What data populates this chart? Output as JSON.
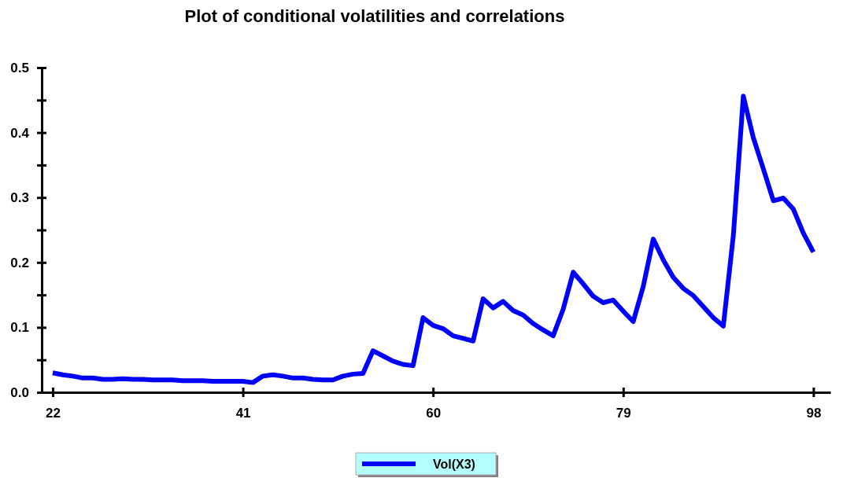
{
  "chart_data": {
    "type": "line",
    "title": "Plot of conditional volatilities and correlations",
    "x": [
      22,
      23,
      24,
      25,
      26,
      27,
      28,
      29,
      30,
      31,
      32,
      33,
      34,
      35,
      36,
      37,
      38,
      39,
      40,
      41,
      42,
      43,
      44,
      45,
      46,
      47,
      48,
      49,
      50,
      51,
      52,
      53,
      54,
      55,
      56,
      57,
      58,
      59,
      60,
      61,
      62,
      63,
      64,
      65,
      66,
      67,
      68,
      69,
      70,
      71,
      72,
      73,
      74,
      75,
      76,
      77,
      78,
      79,
      80,
      81,
      82,
      83,
      84,
      85,
      86,
      87,
      88,
      89,
      90,
      91,
      92,
      93,
      94,
      95,
      96,
      97,
      98
    ],
    "series": [
      {
        "name": "Vol(X3)",
        "color": "#0000ff",
        "values": [
          0.03,
          0.027,
          0.025,
          0.022,
          0.022,
          0.02,
          0.02,
          0.021,
          0.02,
          0.02,
          0.019,
          0.019,
          0.019,
          0.018,
          0.018,
          0.018,
          0.017,
          0.017,
          0.017,
          0.017,
          0.015,
          0.025,
          0.027,
          0.025,
          0.022,
          0.022,
          0.02,
          0.019,
          0.019,
          0.025,
          0.028,
          0.029,
          0.064,
          0.056,
          0.048,
          0.043,
          0.041,
          0.115,
          0.103,
          0.098,
          0.087,
          0.083,
          0.079,
          0.144,
          0.13,
          0.14,
          0.126,
          0.119,
          0.106,
          0.096,
          0.087,
          0.128,
          0.185,
          0.167,
          0.148,
          0.138,
          0.142,
          0.125,
          0.109,
          0.163,
          0.236,
          0.204,
          0.177,
          0.16,
          0.149,
          0.132,
          0.115,
          0.102,
          0.241,
          0.456,
          0.392,
          0.344,
          0.295,
          0.299,
          0.282,
          0.245,
          0.216
        ]
      }
    ],
    "xlim": [
      20.9,
      99.7
    ],
    "xticks": [
      22,
      41,
      60,
      79,
      98
    ],
    "ylim": [
      0,
      0.5
    ],
    "yticks": [
      {
        "value": 0,
        "label": "0.0"
      },
      {
        "value": 0.05,
        "label": null
      },
      0.1,
      {
        "value": 0.15,
        "label": null
      },
      0.2,
      {
        "value": 0.25,
        "label": null
      },
      0.3,
      {
        "value": 0.35,
        "label": null
      },
      0.4,
      {
        "value": 0.45,
        "label": null
      },
      0.5
    ],
    "legend": "bottom",
    "line_style": "solid"
  }
}
